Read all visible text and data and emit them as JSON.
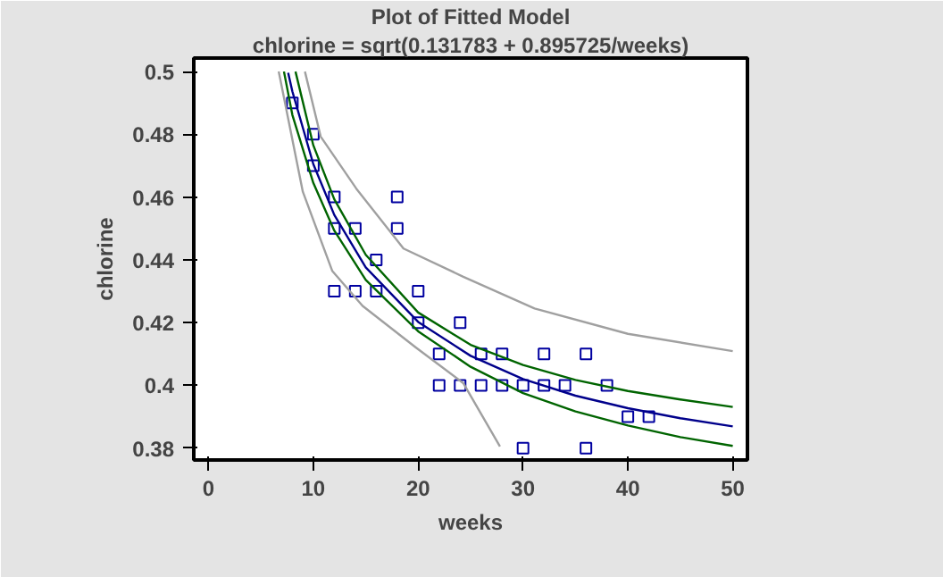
{
  "chart_data": {
    "type": "scatter",
    "title": "Plot of Fitted Model",
    "subtitle": "chlorine = sqrt(0.131783 + 0.895725/weeks)",
    "xlabel": "weeks",
    "ylabel": "chlorine",
    "xlim": [
      -1.4,
      51.4
    ],
    "ylim": [
      0.3762,
      0.5043
    ],
    "xticks": [
      0,
      10,
      20,
      30,
      40,
      50
    ],
    "yticks": [
      0.38,
      0.4,
      0.42,
      0.44,
      0.46,
      0.48,
      0.5
    ],
    "grid": false,
    "series": [
      {
        "marker": "square",
        "color": "#0000a0",
        "x": [
          8,
          10,
          10,
          12,
          12,
          12,
          14,
          14,
          16,
          16,
          18,
          18,
          20,
          20,
          22,
          22,
          24,
          24,
          26,
          26,
          28,
          28,
          30,
          30,
          32,
          32,
          34,
          36,
          36,
          38,
          40,
          42
        ],
        "values": [
          0.49,
          0.48,
          0.47,
          0.46,
          0.45,
          0.43,
          0.45,
          0.43,
          0.44,
          0.43,
          0.46,
          0.45,
          0.42,
          0.43,
          0.41,
          0.4,
          0.42,
          0.4,
          0.41,
          0.4,
          0.41,
          0.4,
          0.4,
          0.38,
          0.41,
          0.4,
          0.4,
          0.41,
          0.38,
          0.4,
          0.39,
          0.39
        ]
      },
      {
        "type": "line",
        "color": "#00008b",
        "x": [
          7.6,
          8,
          10,
          12,
          15,
          20,
          25,
          30,
          35,
          40,
          45,
          50
        ],
        "values": [
          0.4996,
          0.4937,
          0.4705,
          0.4543,
          0.4376,
          0.4202,
          0.4094,
          0.402,
          0.3967,
          0.3927,
          0.3895,
          0.3869
        ]
      },
      {
        "type": "line",
        "color": "#006400",
        "x": [
          7.2,
          8,
          10,
          12,
          15,
          20,
          25,
          30,
          35,
          40,
          45,
          50
        ],
        "values": [
          0.5,
          0.4862,
          0.4645,
          0.4493,
          0.4336,
          0.4172,
          0.4059,
          0.3975,
          0.3917,
          0.3872,
          0.3835,
          0.3807
        ]
      },
      {
        "type": "line",
        "color": "#006400",
        "x": [
          8.3,
          10,
          12,
          15,
          20,
          25,
          30,
          35,
          40,
          45,
          50
        ],
        "values": [
          0.5,
          0.4765,
          0.4593,
          0.4416,
          0.4232,
          0.4129,
          0.4065,
          0.4017,
          0.3982,
          0.3955,
          0.3931
        ]
      },
      {
        "type": "line",
        "color": "#a0a0a0",
        "x": [
          6.7,
          9.0,
          11.8,
          14.7,
          19.8,
          24.3,
          27.8
        ],
        "values": [
          0.5,
          0.4617,
          0.4365,
          0.4253,
          0.412,
          0.4007,
          0.3805
        ]
      },
      {
        "type": "line",
        "color": "#a0a0a0",
        "x": [
          9.2,
          10.7,
          14.1,
          18.6,
          24.3,
          31.1,
          40,
          50
        ],
        "values": [
          0.5,
          0.4793,
          0.4627,
          0.4436,
          0.4346,
          0.4245,
          0.4164,
          0.4109
        ]
      }
    ]
  }
}
